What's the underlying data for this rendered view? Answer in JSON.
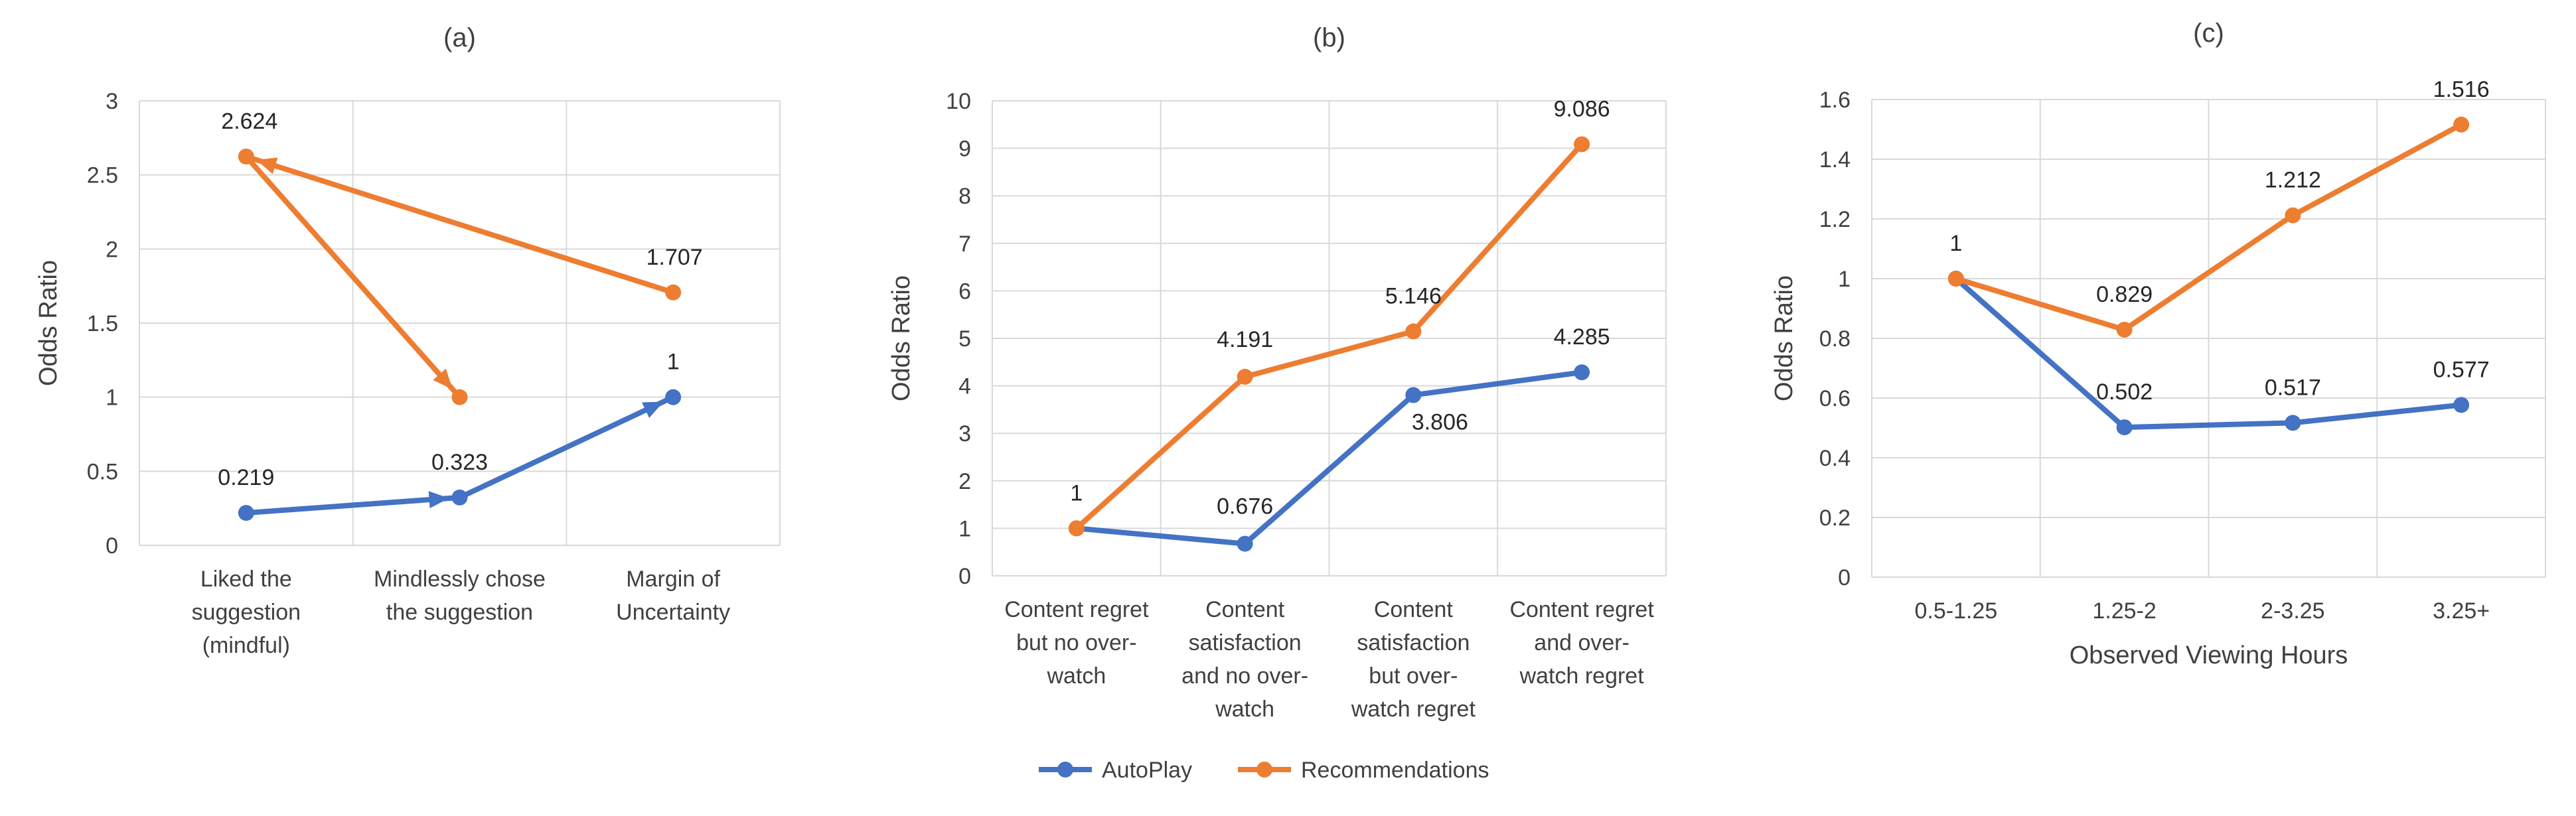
{
  "colors": {
    "autoplay": "#4472C4",
    "recommendations": "#ED7D31",
    "grid": "#D9D9D9",
    "text": "#404040"
  },
  "legend": {
    "placement": "bottom-center",
    "items": [
      "AutoPlay",
      "Recommendations"
    ]
  },
  "chart_data": [
    {
      "type": "line",
      "title": "(a)",
      "ylabel": "Odds Ratio",
      "xlabel": "",
      "ylim": [
        0,
        3
      ],
      "yticks": [
        "0",
        "0.5",
        "1",
        "1.5",
        "2",
        "2.5",
        "3"
      ],
      "grid": true,
      "categories": [
        [
          "Liked the",
          "suggestion",
          "(mindful)"
        ],
        [
          "Mindlessly chose",
          "the suggestion"
        ],
        [
          "Margin of",
          "Uncertainty"
        ]
      ],
      "series": [
        {
          "name": "AutoPlay",
          "order": [
            0,
            1,
            2
          ],
          "values": [
            0.219,
            0.323,
            1
          ],
          "labels": [
            "0.219",
            "0.323",
            "1"
          ],
          "arrows": true
        },
        {
          "name": "Recommendations",
          "order": [
            2,
            0,
            1
          ],
          "values": [
            1.707,
            2.624,
            1
          ],
          "labels": [
            "1.707",
            "2.624",
            ""
          ],
          "arrows": true
        }
      ]
    },
    {
      "type": "line",
      "title": "(b)",
      "ylabel": "Odds Ratio",
      "xlabel": "",
      "ylim": [
        0,
        10
      ],
      "yticks": [
        "0",
        "1",
        "2",
        "3",
        "4",
        "5",
        "6",
        "7",
        "8",
        "9",
        "10"
      ],
      "grid": true,
      "categories": [
        [
          "Content regret",
          "but no over-",
          "watch"
        ],
        [
          "Content",
          "satisfaction",
          "and no over-",
          "watch"
        ],
        [
          "Content",
          "satisfaction",
          "but over-",
          "watch regret"
        ],
        [
          "Content regret",
          "and over-",
          "watch regret"
        ]
      ],
      "series": [
        {
          "name": "AutoPlay",
          "order": [
            0,
            1,
            2,
            3
          ],
          "values": [
            1,
            0.676,
            3.806,
            4.285
          ],
          "labels": [
            "",
            "0.676",
            "3.806",
            "4.285"
          ],
          "arrows": false
        },
        {
          "name": "Recommendations",
          "order": [
            0,
            1,
            2,
            3
          ],
          "values": [
            1,
            4.191,
            5.146,
            9.086
          ],
          "labels": [
            "1",
            "4.191",
            "5.146",
            "9.086"
          ],
          "arrows": false
        }
      ]
    },
    {
      "type": "line",
      "title": "(c)",
      "ylabel": "Odds Ratio",
      "xlabel": "Observed Viewing Hours",
      "ylim": [
        0,
        1.6
      ],
      "yticks": [
        "0",
        "0.2",
        "0.4",
        "0.6",
        "0.8",
        "1",
        "1.2",
        "1.4",
        "1.6"
      ],
      "grid": true,
      "categories": [
        [
          "0.5-1.25"
        ],
        [
          "1.25-2"
        ],
        [
          "2-3.25"
        ],
        [
          "3.25+"
        ]
      ],
      "series": [
        {
          "name": "AutoPlay",
          "order": [
            0,
            1,
            2,
            3
          ],
          "values": [
            1,
            0.502,
            0.517,
            0.577
          ],
          "labels": [
            "",
            "0.502",
            "0.517",
            "0.577"
          ],
          "arrows": false
        },
        {
          "name": "Recommendations",
          "order": [
            0,
            1,
            2,
            3
          ],
          "values": [
            1,
            0.829,
            1.212,
            1.516
          ],
          "labels": [
            "1",
            "0.829",
            "1.212",
            "1.516"
          ],
          "arrows": false
        }
      ]
    }
  ]
}
